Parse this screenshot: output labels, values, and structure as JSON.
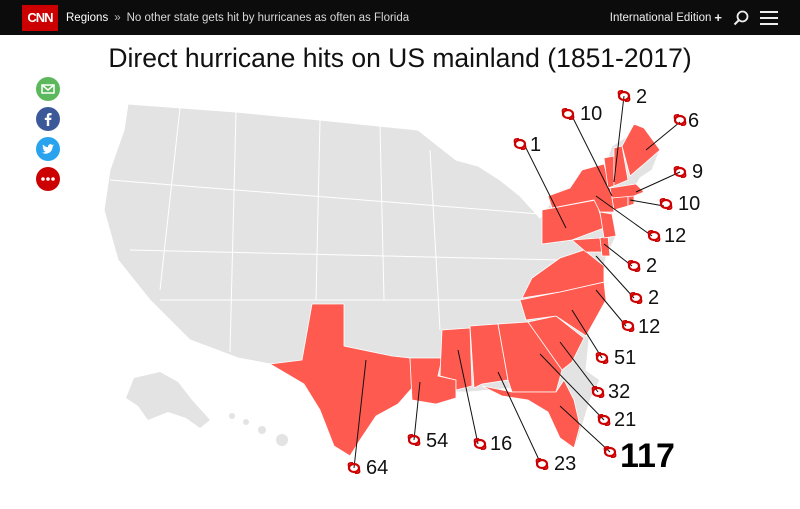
{
  "header": {
    "logo": "CNN",
    "breadcrumb_section": "Regions",
    "breadcrumb_separator": "»",
    "breadcrumb_title": "No other state gets hit by hurricanes as often as Florida",
    "edition": "International Edition",
    "edition_plus": "+"
  },
  "share": {
    "icons": [
      "email-icon",
      "facebook-icon",
      "twitter-icon",
      "more-icon"
    ],
    "colors": {
      "email": "#5cb85c",
      "facebook": "#3b5998",
      "twitter": "#2aa3ef",
      "more": "#cc0000"
    }
  },
  "map": {
    "title": "Direct hurricane hits on US mainland (1851-2017)",
    "highlight_color": "#ff5a4f",
    "base_color": "#e3e3e3",
    "labels": {
      "pa": "1",
      "vt": "10",
      "nh": "2",
      "me": "6",
      "ma": "9",
      "ri": "10",
      "ct": "12",
      "de": "2",
      "md": "2",
      "va": "12",
      "nc": "51",
      "sc": "32",
      "ga": "21",
      "fl": "117",
      "al": "23",
      "ms": "16",
      "la": "54",
      "tx": "64"
    }
  }
}
